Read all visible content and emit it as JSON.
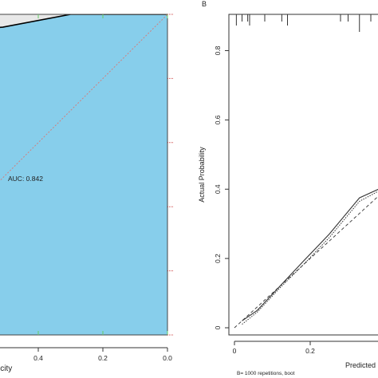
{
  "chart_data": [
    {
      "type": "area",
      "panel_label": "",
      "auc_label": "AUC: 0.842",
      "xlabel": "icity",
      "ylabel": "",
      "x_reversed": true,
      "xlim": [
        1,
        0
      ],
      "ylim": [
        0,
        1
      ],
      "xticks": [
        0.4,
        0.2,
        0.0
      ],
      "xtick_labels": [
        "0.4",
        "0.2",
        "0.0"
      ],
      "grid": false,
      "fill_color": "#87ceeb",
      "upper_fill_color": "#e8e8e8",
      "curve_color": "#000000",
      "diagonal_color": "#d08080",
      "series": [
        {
          "x": [
            0.84,
            0.6,
            0.51,
            0.3,
            0.0
          ],
          "y": [
            0.945,
            0.955,
            0.96,
            1.0,
            1.0
          ]
        }
      ]
    },
    {
      "type": "line",
      "panel_label": "B",
      "xlabel": "Predicted",
      "ylabel": "Actual Probability",
      "footnote": "B= 1000 repetitions, boot",
      "xlim": [
        0,
        0.44
      ],
      "ylim": [
        0,
        1
      ],
      "xticks": [
        0.0,
        0.2
      ],
      "xtick_labels": [
        "0",
        "0.2"
      ],
      "yticks": [
        0,
        0.2,
        0.4,
        0.6,
        0.8
      ],
      "ytick_labels": [
        "0",
        "0.2",
        "0.4",
        "0.6",
        "0.8"
      ],
      "grid": false,
      "rug_x": [
        0.005,
        0.02,
        0.035,
        0.04,
        0.08,
        0.125,
        0.14,
        0.28,
        0.3,
        0.33,
        0.36,
        0.39,
        0.42
      ],
      "series": [
        {
          "style": "dashed",
          "x": [
            0.0,
            0.44
          ],
          "y": [
            0.0,
            0.44
          ]
        },
        {
          "style": "solid",
          "x": [
            0.02,
            0.06,
            0.12,
            0.18,
            0.25,
            0.33,
            0.39,
            0.43
          ],
          "y": [
            0.02,
            0.05,
            0.12,
            0.19,
            0.27,
            0.375,
            0.405,
            0.415
          ]
        },
        {
          "style": "dotted",
          "x": [
            0.02,
            0.06,
            0.12,
            0.18,
            0.25,
            0.33,
            0.39,
            0.43
          ],
          "y": [
            0.01,
            0.045,
            0.115,
            0.18,
            0.26,
            0.365,
            0.4,
            0.41
          ]
        }
      ]
    }
  ]
}
